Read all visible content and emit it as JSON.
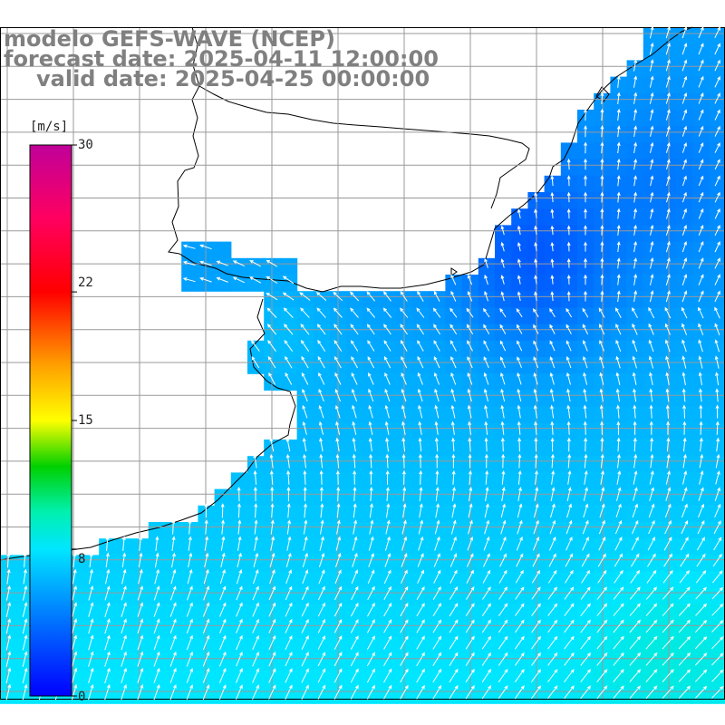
{
  "title": {
    "line1": "modelo GEFS-WAVE (NCEP)",
    "line2": "forecast date: 2025-04-11 12:00:00",
    "line3": "valid date: 2025-04-25 00:00:00"
  },
  "colorbar": {
    "unit": "[m/s]",
    "min": 0,
    "max": 30,
    "ticks": [
      "30",
      "22",
      "15",
      "8",
      "0"
    ],
    "tick_values": [
      30,
      22,
      15,
      8,
      0
    ],
    "stops": [
      {
        "value": 0,
        "color": "#0000ff"
      },
      {
        "value": 4,
        "color": "#0070ff"
      },
      {
        "value": 8,
        "color": "#00e6ff"
      },
      {
        "value": 10,
        "color": "#00f0b0"
      },
      {
        "value": 12.5,
        "color": "#00d000"
      },
      {
        "value": 15,
        "color": "#ffff00"
      },
      {
        "value": 18,
        "color": "#ffa000"
      },
      {
        "value": 22,
        "color": "#ff0000"
      },
      {
        "value": 26,
        "color": "#ff0060"
      },
      {
        "value": 30,
        "color": "#c0009a"
      }
    ]
  },
  "field": {
    "variable": "wind speed and direction",
    "speed_range_shown": [
      0,
      8.5
    ],
    "land_color": "#ffffff",
    "coastline_color": "#000000",
    "gridline_color": "#999999",
    "arrow_color": "#ffffff"
  }
}
